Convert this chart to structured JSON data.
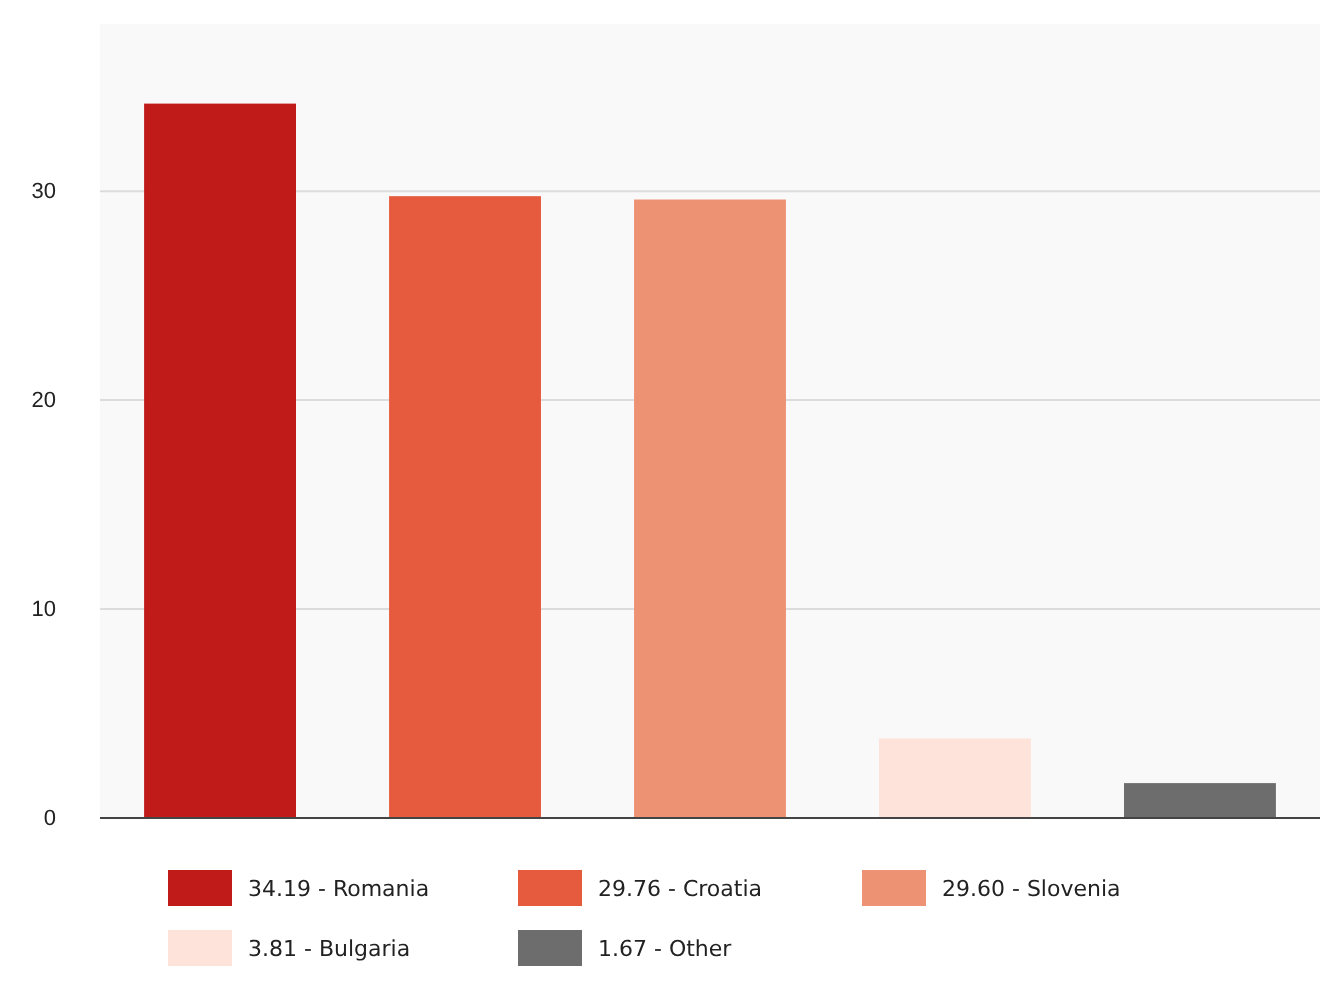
{
  "chart_data": {
    "type": "bar",
    "categories": [
      null,
      null,
      null,
      null,
      null
    ],
    "series": [
      {
        "name": "34.19 - Romania",
        "color": "#c01a19",
        "values": [
          34.19,
          null,
          null,
          null,
          null
        ]
      },
      {
        "name": "29.76 - Croatia",
        "color": "#e65a3e",
        "values": [
          null,
          29.76,
          null,
          null,
          null
        ]
      },
      {
        "name": "29.60 - Slovenia",
        "color": "#ee9274",
        "values": [
          null,
          null,
          29.6,
          null,
          null
        ]
      },
      {
        "name": "3.81 - Bulgaria",
        "color": "#fde3da",
        "values": [
          null,
          null,
          null,
          3.81,
          null
        ]
      },
      {
        "name": "1.67 - Other",
        "color": "#6d6d6d",
        "values": [
          null,
          null,
          null,
          null,
          1.67
        ]
      }
    ],
    "ylim": [
      0,
      38
    ],
    "yticks": [
      0,
      10,
      20,
      30
    ],
    "grid": "y",
    "legend": "bottom"
  }
}
